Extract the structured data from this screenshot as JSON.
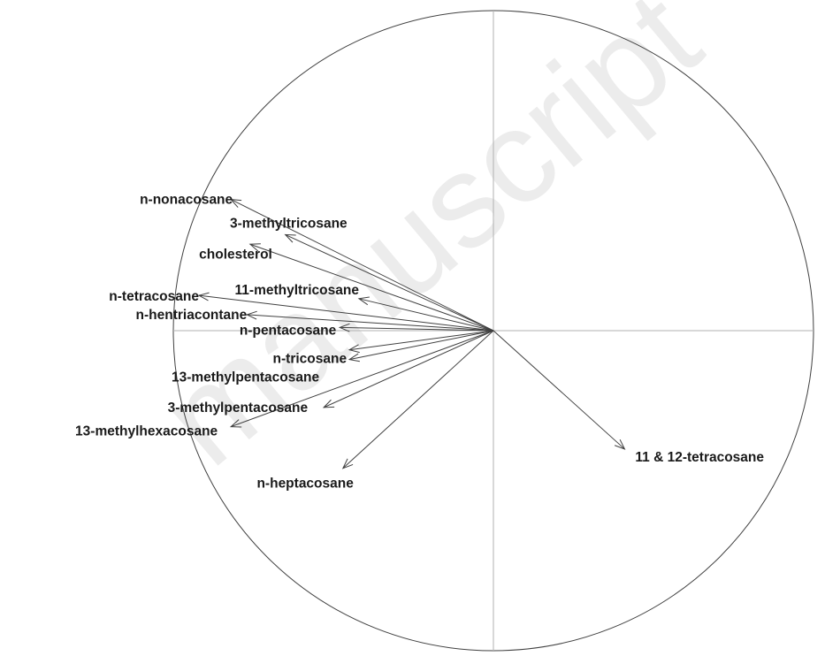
{
  "chart_data": {
    "type": "scatter",
    "subtype": "correlation-circle",
    "title": "",
    "xlabel": "",
    "ylabel": "",
    "xlim": [
      -1,
      1
    ],
    "ylim": [
      -1,
      1
    ],
    "grid": false,
    "axes_lines": true,
    "unit_circle": true,
    "colors": {
      "circle": "#404040",
      "axes": "#b0b0b0",
      "arrows": "#404040",
      "labels": "#1a1a1a",
      "watermark": "#ececec"
    },
    "watermark": "manuscript",
    "variables": [
      {
        "name": "n-nonacosane",
        "x": -0.82,
        "y": 0.41
      },
      {
        "name": "3-methyltricosane",
        "x": -0.65,
        "y": 0.3
      },
      {
        "name": "cholesterol",
        "x": -0.76,
        "y": 0.27
      },
      {
        "name": "11-methyltricosane",
        "x": -0.42,
        "y": 0.1
      },
      {
        "name": "n-tetracosane",
        "x": -0.92,
        "y": 0.11
      },
      {
        "name": "n-hentriacontane",
        "x": -0.77,
        "y": 0.05
      },
      {
        "name": "n-pentacosane",
        "x": -0.48,
        "y": 0.01
      },
      {
        "name": "n-tricosane",
        "x": -0.45,
        "y": -0.09
      },
      {
        "name": "13-methylpentacosane",
        "x": -0.45,
        "y": -0.06
      },
      {
        "name": "3-methylpentacosane",
        "x": -0.53,
        "y": -0.24
      },
      {
        "name": "13-methylhexacosane",
        "x": -0.82,
        "y": -0.3
      },
      {
        "name": "n-heptacosane",
        "x": -0.47,
        "y": -0.43
      },
      {
        "name": "11 & 12-tetracosane",
        "x": 0.41,
        "y": -0.37
      }
    ]
  }
}
